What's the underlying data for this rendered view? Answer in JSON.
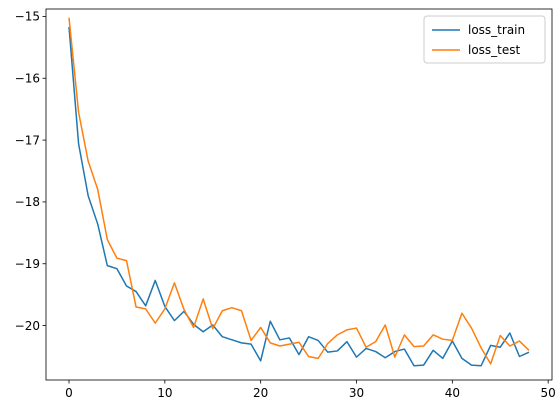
{
  "chart_data": {
    "type": "line",
    "title": "",
    "xlabel": "",
    "ylabel": "",
    "xlim": [
      -2.4,
      50.4
    ],
    "ylim": [
      -20.88,
      -14.88
    ],
    "xticks": [
      0,
      10,
      20,
      30,
      40,
      50
    ],
    "yticks": [
      -20,
      -19,
      -18,
      -17,
      -16,
      -15
    ],
    "grid": false,
    "legend_position": "top-right",
    "x": [
      0,
      1,
      2,
      3,
      4,
      5,
      6,
      7,
      8,
      9,
      10,
      11,
      12,
      13,
      14,
      15,
      16,
      17,
      18,
      19,
      20,
      21,
      22,
      23,
      24,
      25,
      26,
      27,
      28,
      29,
      30,
      31,
      32,
      33,
      34,
      35,
      36,
      37,
      38,
      39,
      40,
      41,
      42,
      43,
      44,
      45,
      46,
      47,
      48
    ],
    "series": [
      {
        "name": "loss_train",
        "color": "#1f77b4",
        "values": [
          -15.17,
          -17.06,
          -17.9,
          -18.36,
          -19.03,
          -19.08,
          -19.36,
          -19.45,
          -19.68,
          -19.27,
          -19.69,
          -19.92,
          -19.77,
          -19.98,
          -20.1,
          -19.99,
          -20.18,
          -20.23,
          -20.28,
          -20.3,
          -20.57,
          -19.93,
          -20.23,
          -20.2,
          -20.47,
          -20.18,
          -20.24,
          -20.43,
          -20.41,
          -20.26,
          -20.51,
          -20.37,
          -20.42,
          -20.52,
          -20.42,
          -20.38,
          -20.65,
          -20.64,
          -20.4,
          -20.53,
          -20.25,
          -20.53,
          -20.64,
          -20.65,
          -20.32,
          -20.35,
          -20.12,
          -20.5,
          -20.43
        ]
      },
      {
        "name": "loss_test",
        "color": "#ff7f0e",
        "values": [
          -15.02,
          -16.55,
          -17.34,
          -17.8,
          -18.61,
          -18.91,
          -18.95,
          -19.7,
          -19.73,
          -19.96,
          -19.73,
          -19.31,
          -19.74,
          -20.03,
          -19.57,
          -20.05,
          -19.76,
          -19.71,
          -19.76,
          -20.24,
          -20.03,
          -20.28,
          -20.33,
          -20.3,
          -20.27,
          -20.5,
          -20.53,
          -20.29,
          -20.15,
          -20.07,
          -20.04,
          -20.35,
          -20.26,
          -19.99,
          -20.51,
          -20.15,
          -20.34,
          -20.33,
          -20.15,
          -20.22,
          -20.24,
          -19.8,
          -20.04,
          -20.36,
          -20.62,
          -20.16,
          -20.33,
          -20.25,
          -20.4
        ]
      }
    ]
  }
}
